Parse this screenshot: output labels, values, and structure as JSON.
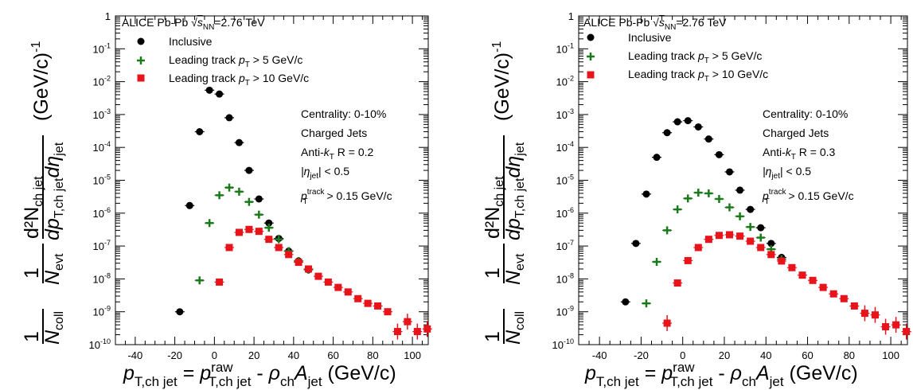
{
  "chart_data": [
    {
      "type": "scatter",
      "panel": "left",
      "title": "ALICE Pb-Pb √sNN=2.76 TeV",
      "title_parts": {
        "system": "ALICE Pb-Pb ",
        "sqrt": "√",
        "s": "s",
        "s_sub": "NN",
        "energy": "=2.76 TeV"
      },
      "xlabel": {
        "lhs": "p",
        "lhs_sub": "T,ch jet",
        "eq": " = ",
        "p": "p",
        "p_sup": "raw",
        "p_sub": "T,ch jet",
        "minus": " - ",
        "rho": "ρ",
        "rho_sub": "ch",
        "A": "A",
        "A_sub": "jet",
        "unit": " (GeV/c)"
      },
      "ylabel": {
        "n1": "1",
        "d1": "N",
        "d1_sub": "coll",
        "n2": "1",
        "d2": "N",
        "d2_sub": "evt",
        "n3": "d²N",
        "n3_sub": "ch jet",
        "d3": "dp",
        "d3_sub": "T,ch jet",
        "d3b": "dη",
        "d3b_sub": "jet",
        "unit": "(GeV/c)",
        "unit_sup": "-1"
      },
      "xlim": [
        -50,
        108
      ],
      "ylim": [
        1e-10,
        1
      ],
      "y_scale": "log",
      "x_ticks": [
        -40,
        -20,
        0,
        20,
        40,
        60,
        80,
        100
      ],
      "y_ticks": [
        {
          "v": 1,
          "m": "1",
          "e": ""
        },
        {
          "v": 0.1,
          "m": "10",
          "e": "-1"
        },
        {
          "v": 0.01,
          "m": "10",
          "e": "-2"
        },
        {
          "v": 0.001,
          "m": "10",
          "e": "-3"
        },
        {
          "v": 0.0001,
          "m": "10",
          "e": "-4"
        },
        {
          "v": 1e-05,
          "m": "10",
          "e": "-5"
        },
        {
          "v": 1e-06,
          "m": "10",
          "e": "-6"
        },
        {
          "v": 1e-07,
          "m": "10",
          "e": "-7"
        },
        {
          "v": 1e-08,
          "m": "10",
          "e": "-8"
        },
        {
          "v": 1e-09,
          "m": "10",
          "e": "-9"
        },
        {
          "v": 1e-10,
          "m": "10",
          "e": "-10"
        }
      ],
      "legend": [
        {
          "label_main": "Inclusive",
          "label_pt": "",
          "label_sub": "",
          "label_rest": ""
        },
        {
          "label_main": "Leading track ",
          "label_pt": "p",
          "label_sub": "T",
          "label_rest": " > 5 GeV/c"
        },
        {
          "label_main": "Leading track ",
          "label_pt": "p",
          "label_sub": "T",
          "label_rest": " > 10 GeV/c"
        }
      ],
      "info": {
        "centrality": "Centrality: 0-10%",
        "jets": "Charged Jets",
        "algo_pre": "Anti-",
        "algo_k": "k",
        "algo_k_sub": "T",
        "algo_r": " R = 0.2",
        "eta_pre": "|η",
        "eta_sub": "jet",
        "eta_post": "| < 0.5",
        "pt_p": "p",
        "pt_sup": "track",
        "pt_sub": "T",
        "pt_post": " > 0.15 GeV/c"
      },
      "series": [
        {
          "name": "Inclusive",
          "marker": "circle",
          "color": "#000000",
          "x": [
            -17.5,
            -12.5,
            -7.5,
            -2.5,
            2.5,
            7.5,
            12.5,
            17.5,
            22.5,
            27.5,
            32.5,
            37.5,
            42.5,
            47.5
          ],
          "y": [
            1e-09,
            1.7e-06,
            0.0003,
            0.0055,
            0.0042,
            0.0008,
            0.00014,
            2e-05,
            2.7e-06,
            5e-07,
            1.7e-07,
            7e-08,
            3.5e-08,
            1.9e-08
          ]
        },
        {
          "name": "Leading track pT > 5 GeV/c",
          "marker": "cross",
          "color": "#1a7a1a",
          "x": [
            -7.5,
            -2.5,
            2.5,
            7.5,
            12.5,
            17.5,
            22.5,
            27.5,
            32.5,
            37.5,
            42.5,
            47.5
          ],
          "y": [
            9e-09,
            5e-07,
            3.5e-06,
            6e-06,
            4.5e-06,
            2.2e-06,
            9e-07,
            3.6e-07,
            1.6e-07,
            7e-08,
            3.5e-08,
            1.9e-08
          ]
        },
        {
          "name": "Leading track pT > 10 GeV/c",
          "marker": "square",
          "color": "#e8141b",
          "x": [
            2.5,
            7.5,
            12.5,
            17.5,
            22.5,
            27.5,
            32.5,
            37.5,
            42.5,
            47.5,
            52.5,
            57.5,
            62.5,
            67.5,
            72.5,
            77.5,
            82.5,
            87.5,
            92.5,
            97.5,
            102.5,
            107.5
          ],
          "y": [
            8e-09,
            9e-08,
            2.6e-07,
            3.2e-07,
            2.8e-07,
            1.6e-07,
            9e-08,
            5.5e-08,
            3.2e-08,
            2e-08,
            1.2e-08,
            8e-09,
            5.5e-09,
            4e-09,
            2.5e-09,
            1.8e-09,
            1.5e-09,
            1e-09,
            2.5e-10,
            5e-10,
            2.5e-10,
            3e-10
          ]
        }
      ]
    },
    {
      "type": "scatter",
      "panel": "right",
      "title": "ALICE Pb-Pb √sNN=2.76 TeV",
      "title_parts": {
        "system": "ALICE Pb-Pb ",
        "sqrt": "√",
        "s": "s",
        "s_sub": "NN",
        "energy": "=2.76 TeV"
      },
      "xlabel": {
        "lhs": "p",
        "lhs_sub": "T,ch jet",
        "eq": " = ",
        "p": "p",
        "p_sup": "raw",
        "p_sub": "T,ch jet",
        "minus": " - ",
        "rho": "ρ",
        "rho_sub": "ch",
        "A": "A",
        "A_sub": "jet",
        "unit": " (GeV/c)"
      },
      "ylabel": {
        "n1": "1",
        "d1": "N",
        "d1_sub": "coll",
        "n2": "1",
        "d2": "N",
        "d2_sub": "evt",
        "n3": "d²N",
        "n3_sub": "ch jet",
        "d3": "dp",
        "d3_sub": "T,ch jet",
        "d3b": "dη",
        "d3b_sub": "jet",
        "unit": "(GeV/c)",
        "unit_sup": "-1"
      },
      "xlim": [
        -50,
        108
      ],
      "ylim": [
        1e-10,
        1
      ],
      "y_scale": "log",
      "x_ticks": [
        -40,
        -20,
        0,
        20,
        40,
        60,
        80,
        100
      ],
      "y_ticks": [
        {
          "v": 1,
          "m": "1",
          "e": ""
        },
        {
          "v": 0.1,
          "m": "10",
          "e": "-1"
        },
        {
          "v": 0.01,
          "m": "10",
          "e": "-2"
        },
        {
          "v": 0.001,
          "m": "10",
          "e": "-3"
        },
        {
          "v": 0.0001,
          "m": "10",
          "e": "-4"
        },
        {
          "v": 1e-05,
          "m": "10",
          "e": "-5"
        },
        {
          "v": 1e-06,
          "m": "10",
          "e": "-6"
        },
        {
          "v": 1e-07,
          "m": "10",
          "e": "-7"
        },
        {
          "v": 1e-08,
          "m": "10",
          "e": "-8"
        },
        {
          "v": 1e-09,
          "m": "10",
          "e": "-9"
        },
        {
          "v": 1e-10,
          "m": "10",
          "e": "-10"
        }
      ],
      "legend": [
        {
          "label_main": "Inclusive",
          "label_pt": "",
          "label_sub": "",
          "label_rest": ""
        },
        {
          "label_main": "Leading track ",
          "label_pt": "p",
          "label_sub": "T",
          "label_rest": " > 5 GeV/c"
        },
        {
          "label_main": "Leading track ",
          "label_pt": "p",
          "label_sub": "T",
          "label_rest": " > 10 GeV/c"
        }
      ],
      "info": {
        "centrality": "Centrality: 0-10%",
        "jets": "Charged Jets",
        "algo_pre": "Anti-",
        "algo_k": "k",
        "algo_k_sub": "T",
        "algo_r": " R = 0.3",
        "eta_pre": "|η",
        "eta_sub": "jet",
        "eta_post": "| < 0.5",
        "pt_p": "p",
        "pt_sup": "track",
        "pt_sub": "T",
        "pt_post": " > 0.15 GeV/c"
      },
      "series": [
        {
          "name": "Inclusive",
          "marker": "circle",
          "color": "#000000",
          "x": [
            -27.5,
            -22.5,
            -17.5,
            -12.5,
            -7.5,
            -2.5,
            2.5,
            7.5,
            12.5,
            17.5,
            22.5,
            27.5,
            32.5,
            37.5,
            42.5,
            47.5
          ],
          "y": [
            2e-09,
            1.2e-07,
            3.8e-06,
            5e-05,
            0.00028,
            0.0006,
            0.00065,
            0.00042,
            0.00018,
            6e-05,
            1.8e-05,
            5e-06,
            1.3e-06,
            3.6e-07,
            1.2e-07,
            4.5e-08
          ]
        },
        {
          "name": "Leading track pT > 5 GeV/c",
          "marker": "cross",
          "color": "#1a7a1a",
          "x": [
            -17.5,
            -12.5,
            -7.5,
            -2.5,
            2.5,
            7.5,
            12.5,
            17.5,
            22.5,
            27.5,
            32.5,
            37.5,
            42.5,
            47.5
          ],
          "y": [
            1.8e-09,
            3.3e-08,
            3e-07,
            1.3e-06,
            2.8e-06,
            4.2e-06,
            4e-06,
            2.7e-06,
            1.5e-06,
            8e-07,
            3.8e-07,
            1.8e-07,
            8e-08,
            4e-08
          ]
        },
        {
          "name": "Leading track pT > 10 GeV/c",
          "marker": "square",
          "color": "#e8141b",
          "x": [
            -7.5,
            -2.5,
            2.5,
            7.5,
            12.5,
            17.5,
            22.5,
            27.5,
            32.5,
            37.5,
            42.5,
            47.5,
            52.5,
            57.5,
            62.5,
            67.5,
            72.5,
            77.5,
            82.5,
            87.5,
            92.5,
            97.5,
            102.5,
            107.5
          ],
          "y": [
            4.5e-10,
            7.5e-09,
            3.6e-08,
            9e-08,
            1.6e-07,
            2.1e-07,
            2.2e-07,
            2e-07,
            1.4e-07,
            9e-08,
            5.5e-08,
            3.5e-08,
            2.2e-08,
            1.3e-08,
            9e-09,
            5.5e-09,
            3.5e-09,
            2.5e-09,
            1.5e-09,
            9e-10,
            8e-10,
            3.5e-10,
            4e-10,
            2.5e-10
          ]
        }
      ]
    }
  ]
}
